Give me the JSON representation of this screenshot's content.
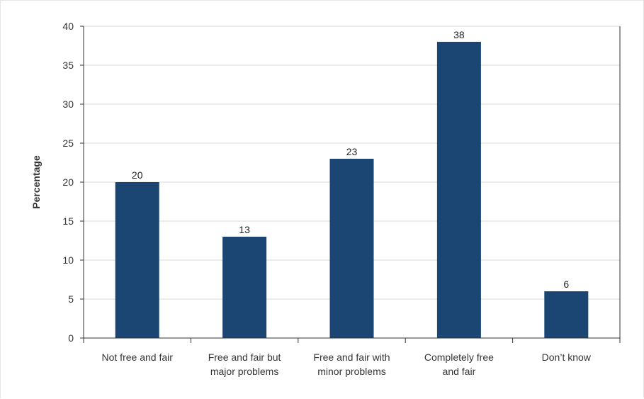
{
  "chart_data": {
    "type": "bar",
    "title": "",
    "ylabel": "Percentage",
    "xlabel": "",
    "ylim": [
      0,
      40
    ],
    "yticks": [
      0,
      5,
      10,
      15,
      20,
      25,
      30,
      35,
      40
    ],
    "grid": true,
    "categories": [
      [
        "Not free and fair"
      ],
      [
        "Free and fair but",
        "major problems"
      ],
      [
        "Free and fair with",
        "minor problems"
      ],
      [
        "Completely free",
        "and fair"
      ],
      [
        "Don’t know"
      ]
    ],
    "values": [
      20,
      13,
      23,
      38,
      6
    ],
    "bar_color": "#1b4673",
    "grid_color": "#d9d9d9",
    "axis_color": "#333333"
  }
}
